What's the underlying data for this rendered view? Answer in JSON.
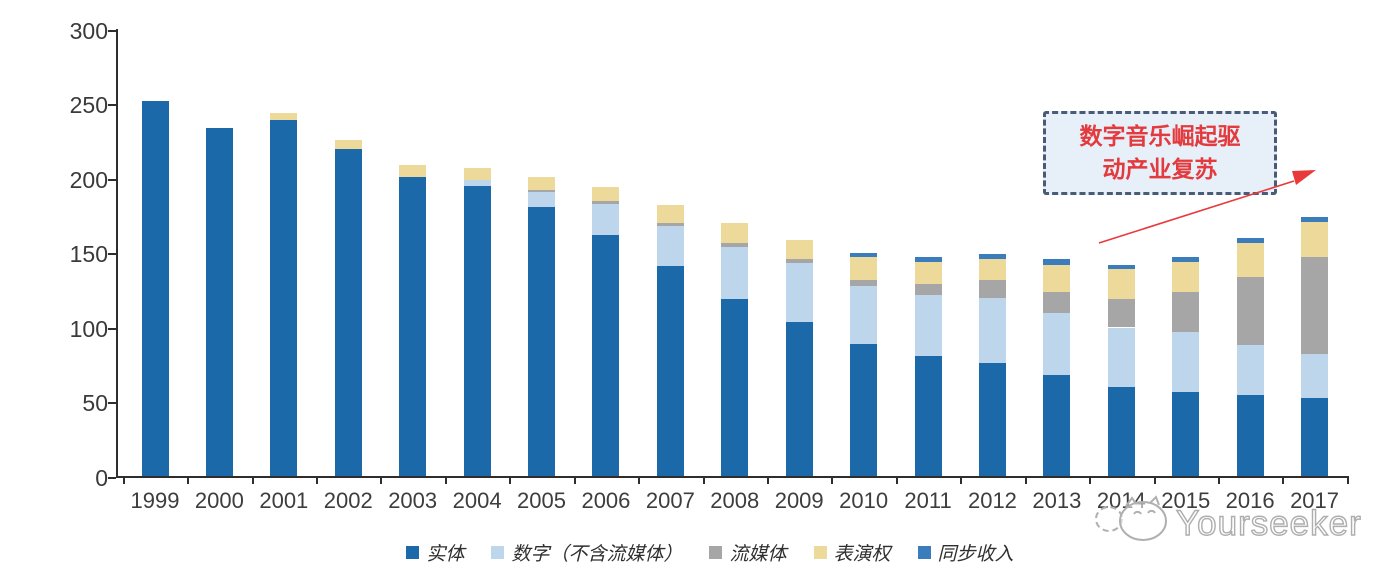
{
  "chart_data": {
    "type": "bar",
    "stacked": true,
    "title": "",
    "categories": [
      "1999",
      "2000",
      "2001",
      "2002",
      "2003",
      "2004",
      "2005",
      "2006",
      "2007",
      "2008",
      "2009",
      "2010",
      "2011",
      "2012",
      "2013",
      "2014",
      "2015",
      "2016",
      "2017"
    ],
    "series": [
      {
        "key": "physical",
        "name": "实体",
        "color": "#1c69a9",
        "values": [
          252,
          234,
          239,
          220,
          201,
          195,
          181,
          162,
          141,
          119,
          104,
          89,
          81,
          76,
          68,
          60,
          57,
          55,
          53
        ]
      },
      {
        "key": "digital",
        "name": "数字（不含流媒体）",
        "color": "#bdd6ec",
        "values": [
          0,
          0,
          0,
          0,
          0,
          4,
          10,
          21,
          27,
          35,
          39,
          39,
          41,
          44,
          42,
          40,
          40,
          33,
          29
        ]
      },
      {
        "key": "streaming",
        "name": "流媒体",
        "color": "#a6a6a6",
        "values": [
          0,
          0,
          0,
          0,
          0,
          0,
          1,
          2,
          2,
          3,
          3,
          4,
          7,
          12,
          14,
          19,
          27,
          46,
          65
        ]
      },
      {
        "key": "performance",
        "name": "表演权",
        "color": "#edd99a",
        "values": [
          0,
          0,
          5,
          6,
          8,
          8,
          9,
          9,
          12,
          13,
          13,
          15,
          15,
          14,
          18,
          20,
          20,
          23,
          24
        ]
      },
      {
        "key": "sync",
        "name": "同步收入",
        "color": "#3b7dbc",
        "values": [
          0,
          0,
          0,
          0,
          0,
          0,
          0,
          0,
          0,
          0,
          0,
          3,
          3,
          3,
          4,
          3,
          3,
          3,
          3
        ]
      }
    ],
    "totals": [
      252,
      234,
      244,
      226,
      209,
      207,
      201,
      194,
      182,
      170,
      159,
      150,
      147,
      149,
      146,
      142,
      147,
      160,
      174
    ],
    "xlabel": "",
    "ylabel": "",
    "ylim": [
      0,
      300
    ],
    "y_ticks": [
      0,
      50,
      100,
      150,
      200,
      250,
      300
    ],
    "grid": false,
    "legend_position": "bottom"
  },
  "annotation": {
    "text": "数字音乐崛起驱动产业复苏",
    "line1": "数字音乐崛起驱",
    "line2": "动产业复苏",
    "box_fill": "#e7eff9",
    "border_color": "#4a5b78",
    "text_color": "#e23a3d",
    "arrow_color": "#e8393b"
  },
  "watermark": {
    "text": "Yourseeker",
    "logo": "cat-face"
  }
}
